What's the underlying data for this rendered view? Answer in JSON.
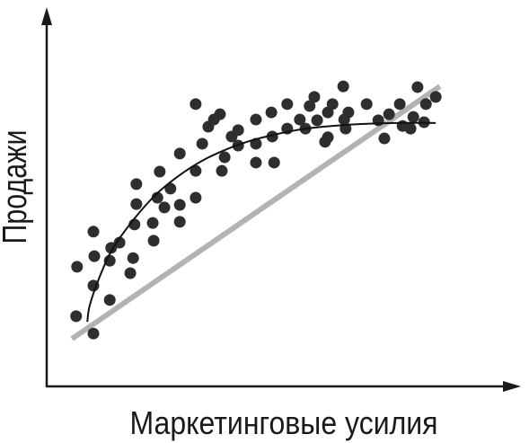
{
  "chart_data": {
    "type": "scatter",
    "xlabel": "Маркетинговые усилия",
    "ylabel": "Продажи",
    "xlim": [
      0,
      100
    ],
    "ylim": [
      0,
      100
    ],
    "grid": false,
    "legend": "none",
    "axis_color": "#1a1a1a",
    "series": [
      {
        "type": "line",
        "color": "#b3b3b3",
        "points": [
          [
            5.4,
            12.6
          ],
          [
            84.2,
            79.5
          ]
        ]
      },
      {
        "type": "scatter",
        "color": "#2e2e2e",
        "points": [
          [
            6.3,
            18.6
          ],
          [
            6.5,
            31.7
          ],
          [
            10.0,
            14.0
          ],
          [
            10.0,
            41.0
          ],
          [
            10.2,
            34.5
          ],
          [
            10.0,
            26.7
          ],
          [
            13.5,
            22.9
          ],
          [
            13.5,
            33.3
          ],
          [
            13.8,
            36.7
          ],
          [
            15.6,
            38.1
          ],
          [
            17.9,
            30.0
          ],
          [
            18.5,
            34.0
          ],
          [
            18.8,
            42.9
          ],
          [
            19.2,
            48.3
          ],
          [
            19.2,
            53.6
          ],
          [
            22.9,
            38.6
          ],
          [
            22.7,
            43.3
          ],
          [
            23.7,
            50.0
          ],
          [
            24.2,
            56.9
          ],
          [
            25.2,
            47.4
          ],
          [
            26.5,
            52.4
          ],
          [
            28.5,
            48.1
          ],
          [
            28.5,
            43.6
          ],
          [
            28.5,
            61.7
          ],
          [
            31.9,
            50.0
          ],
          [
            31.9,
            57.1
          ],
          [
            31.9,
            74.8
          ],
          [
            33.3,
            64.3
          ],
          [
            34.6,
            68.8
          ],
          [
            35.8,
            70.7
          ],
          [
            37.1,
            72.1
          ],
          [
            37.5,
            57.1
          ],
          [
            38.1,
            60.7
          ],
          [
            39.6,
            66.2
          ],
          [
            41.0,
            67.9
          ],
          [
            41.0,
            63.8
          ],
          [
            44.8,
            70.7
          ],
          [
            44.8,
            59.3
          ],
          [
            44.8,
            64.3
          ],
          [
            48.1,
            72.6
          ],
          [
            48.3,
            66.2
          ],
          [
            48.7,
            59.3
          ],
          [
            51.5,
            74.8
          ],
          [
            51.5,
            68.3
          ],
          [
            54.2,
            70.7
          ],
          [
            55.4,
            68.3
          ],
          [
            56.3,
            74.3
          ],
          [
            57.3,
            76.7
          ],
          [
            57.9,
            70.5
          ],
          [
            59.6,
            64.8
          ],
          [
            60.2,
            72.6
          ],
          [
            60.2,
            66.0
          ],
          [
            61.2,
            74.8
          ],
          [
            63.5,
            79.5
          ],
          [
            63.7,
            70.7
          ],
          [
            64.0,
            68.3
          ],
          [
            64.6,
            72.6
          ],
          [
            68.5,
            74.8
          ],
          [
            71.0,
            70.5
          ],
          [
            72.3,
            65.7
          ],
          [
            73.3,
            72.1
          ],
          [
            75.6,
            74.8
          ],
          [
            76.2,
            69.0
          ],
          [
            77.9,
            68.3
          ],
          [
            78.5,
            71.4
          ],
          [
            79.4,
            79.3
          ],
          [
            80.8,
            70.0
          ],
          [
            81.2,
            74.8
          ],
          [
            83.3,
            76.7
          ]
        ]
      },
      {
        "type": "line",
        "smooth": true,
        "color": "#111111",
        "points": [
          [
            8.7,
            17.1
          ],
          [
            9.2,
            21.4
          ],
          [
            11.2,
            28.6
          ],
          [
            14.0,
            36.2
          ],
          [
            18.8,
            44.5
          ],
          [
            23.7,
            51.2
          ],
          [
            28.5,
            56.0
          ],
          [
            33.3,
            59.8
          ],
          [
            38.1,
            62.6
          ],
          [
            42.9,
            64.8
          ],
          [
            47.7,
            66.4
          ],
          [
            53.5,
            67.9
          ],
          [
            59.2,
            68.8
          ],
          [
            66.9,
            69.5
          ],
          [
            74.6,
            69.8
          ],
          [
            83.3,
            69.8
          ]
        ]
      }
    ]
  }
}
